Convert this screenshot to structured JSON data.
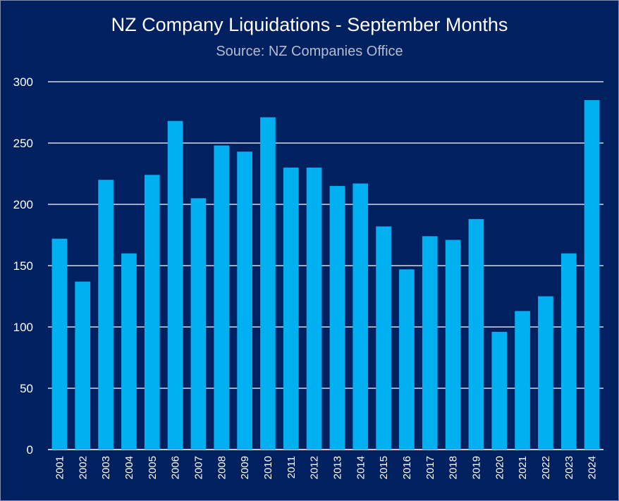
{
  "chart_data": {
    "type": "bar",
    "title": "NZ Company Liquidations - September Months",
    "subtitle": "Source: NZ Companies Office",
    "xlabel": "",
    "ylabel": "",
    "categories": [
      "2001",
      "2002",
      "2003",
      "2004",
      "2005",
      "2006",
      "2007",
      "2008",
      "2009",
      "2010",
      "2011",
      "2012",
      "2013",
      "2014",
      "2015",
      "2016",
      "2017",
      "2018",
      "2019",
      "2020",
      "2021",
      "2022",
      "2023",
      "2024"
    ],
    "values": [
      172,
      137,
      220,
      160,
      224,
      268,
      205,
      248,
      243,
      271,
      230,
      230,
      215,
      217,
      182,
      147,
      174,
      171,
      188,
      96,
      113,
      125,
      160,
      285
    ],
    "ylim": [
      0,
      300
    ],
    "yticks": [
      0,
      50,
      100,
      150,
      200,
      250,
      300
    ],
    "grid": true,
    "legend": "none",
    "colors": {
      "background": "#002060",
      "bar": "#00B0F0",
      "grid": "#ffffff",
      "text": "#ffffff"
    }
  }
}
